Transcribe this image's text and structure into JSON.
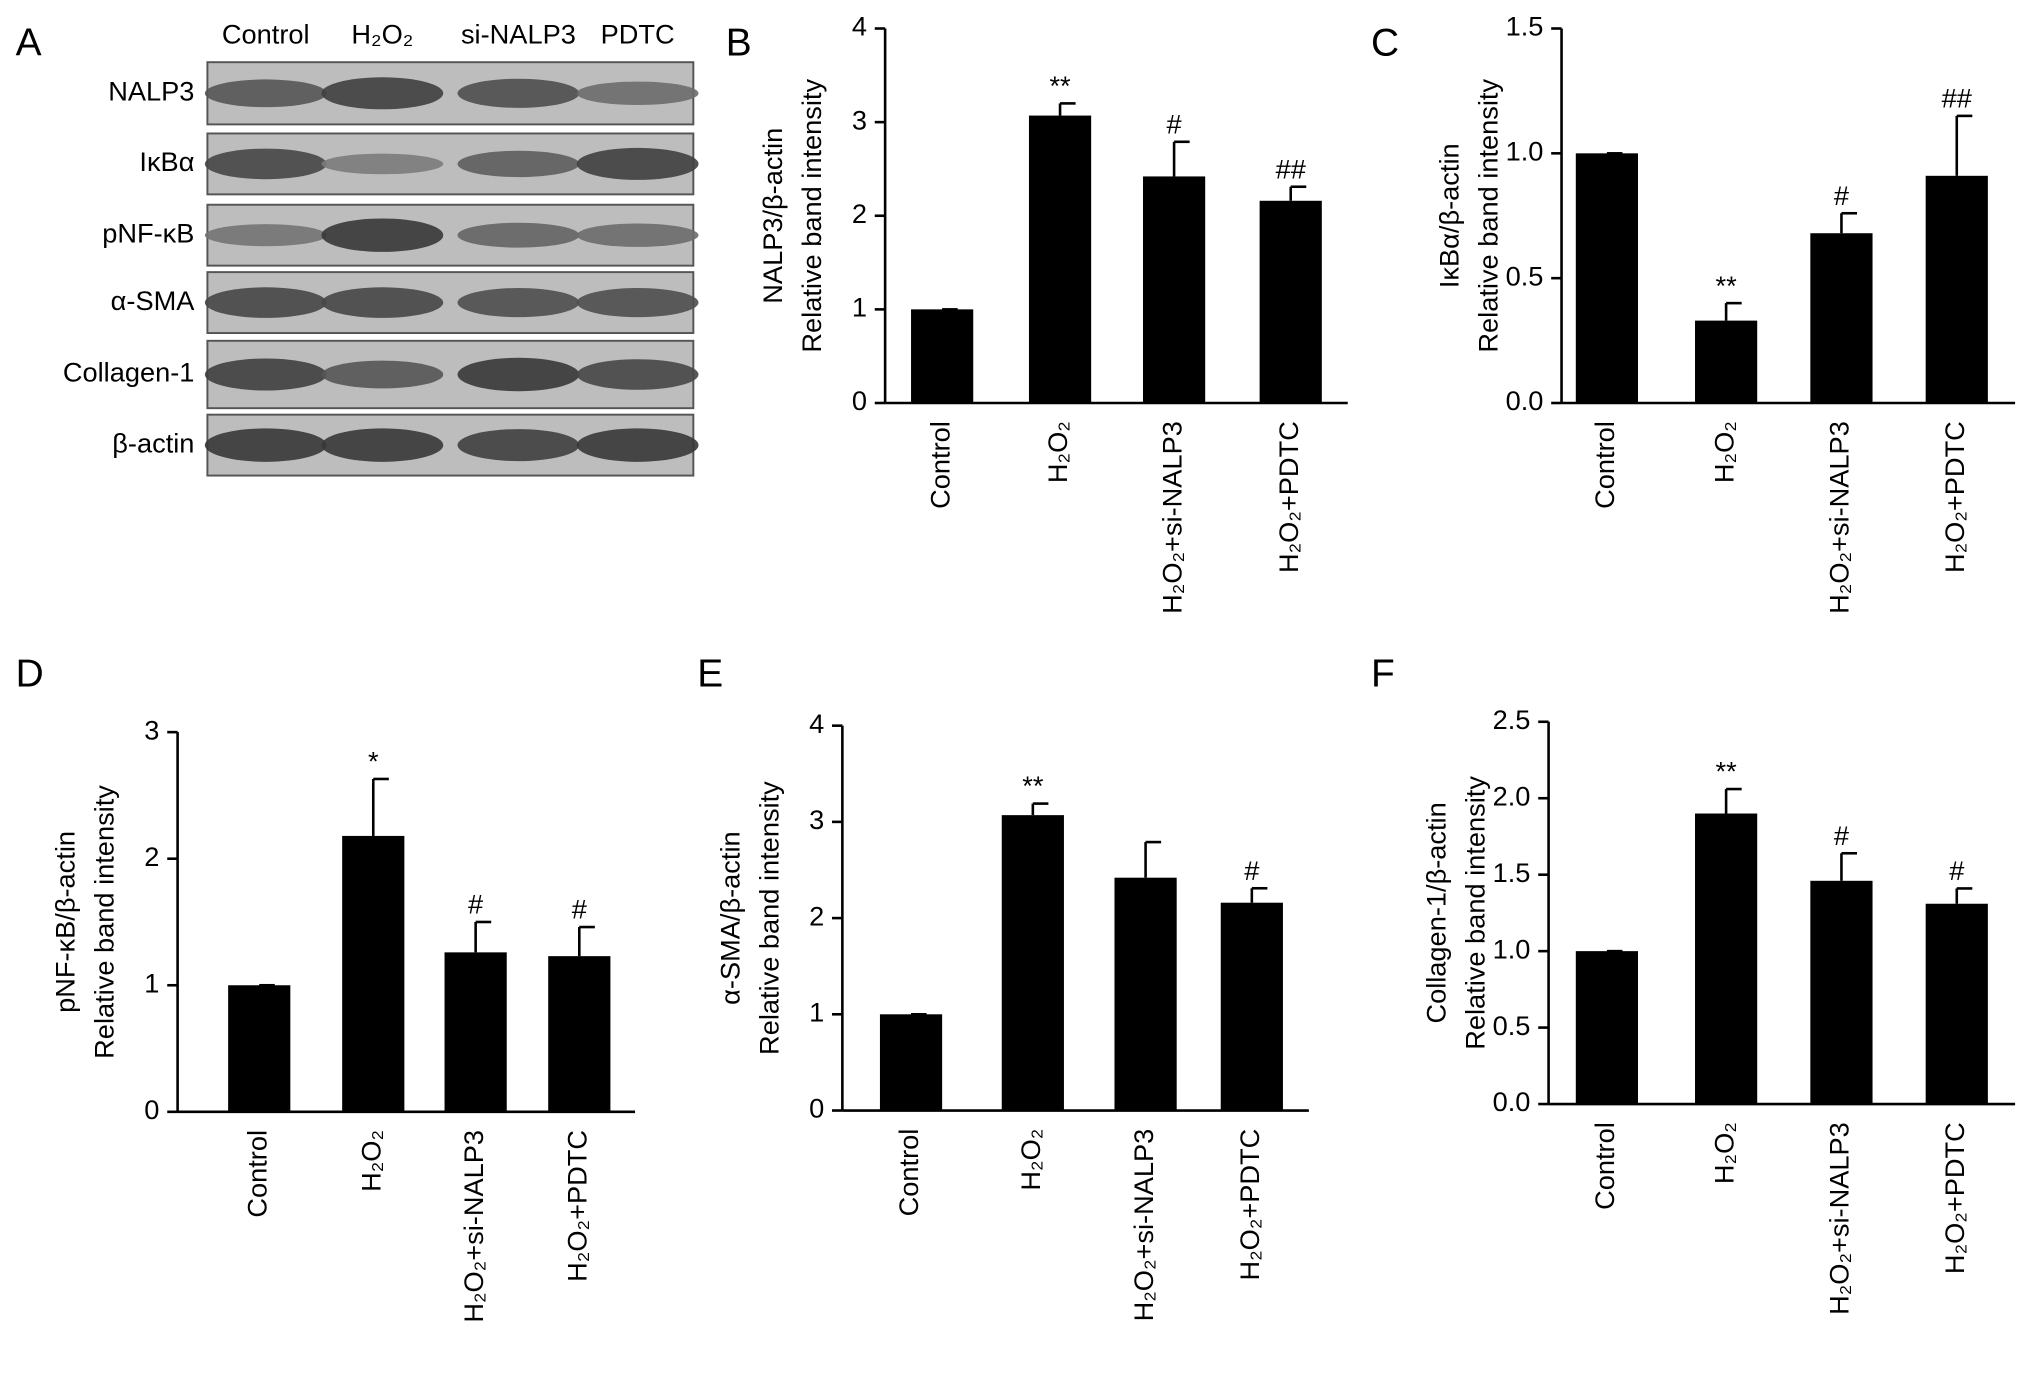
{
  "chart_data": [
    {
      "type": "blot",
      "panel": "A",
      "lanes": [
        "Control",
        "H₂O₂",
        "si-NALP3",
        "PDTC"
      ],
      "rows": [
        "NALP3",
        "IκBα",
        "pNF-κB",
        "α-SMA",
        "Collagen-1",
        "β-actin"
      ]
    },
    {
      "type": "bar",
      "panel": "B",
      "ylabel": [
        "NALP3/β-actin",
        "Relative band intensity"
      ],
      "categories": [
        "Control",
        "H₂O₂",
        "H₂O₂+si-NALP3",
        "H₂O₂+PDTC"
      ],
      "values": [
        1.0,
        3.07,
        2.42,
        2.16
      ],
      "errors": [
        0,
        0.13,
        0.37,
        0.15
      ],
      "annotations": [
        null,
        "**",
        "#",
        "##"
      ],
      "color": "#000000",
      "ylim": [
        0,
        4
      ],
      "yticks": [
        0,
        1,
        2,
        3,
        4
      ]
    },
    {
      "type": "bar",
      "panel": "C",
      "ylabel": [
        "IκBα/β-actin",
        "Relative band intensity"
      ],
      "categories": [
        "Control",
        "H₂O₂",
        "H₂O₂+si-NALP3",
        "H₂O₂+PDTC"
      ],
      "values": [
        1.0,
        0.33,
        0.68,
        0.91
      ],
      "errors": [
        0,
        0.07,
        0.08,
        0.24
      ],
      "annotations": [
        null,
        "**",
        "#",
        "##"
      ],
      "color": "#000000",
      "ylim": [
        0,
        1.5
      ],
      "yticks": [
        {
          "value": 0,
          "label": "0.0"
        },
        0.5,
        {
          "value": 1,
          "label": "1.0"
        },
        1.5
      ]
    },
    {
      "type": "bar",
      "panel": "D",
      "ylabel": [
        "pNF-κB/β-actin",
        "Relative band intensity"
      ],
      "categories": [
        "Control",
        "H₂O₂",
        "H₂O₂+si-NALP3",
        "H₂O₂+PDTC"
      ],
      "values": [
        1.0,
        2.18,
        1.26,
        1.23
      ],
      "errors": [
        0,
        0.45,
        0.24,
        0.23
      ],
      "annotations": [
        null,
        "*",
        "#",
        "#"
      ],
      "color": "#000000",
      "ylim": [
        0,
        3
      ],
      "yticks": [
        0,
        1,
        2,
        3
      ]
    },
    {
      "type": "bar",
      "panel": "E",
      "ylabel": [
        "α-SMA/β-actin",
        "Relative band intensity"
      ],
      "categories": [
        "Control",
        "H₂O₂",
        "H₂O₂+si-NALP3",
        "H₂O₂+PDTC"
      ],
      "values": [
        1.0,
        3.07,
        2.42,
        2.16
      ],
      "errors": [
        0,
        0.12,
        0.37,
        0.15
      ],
      "annotations": [
        null,
        "**",
        null,
        "#"
      ],
      "color": "#000000",
      "ylim": [
        0,
        4
      ],
      "yticks": [
        0,
        1,
        2,
        3,
        4
      ]
    },
    {
      "type": "bar",
      "panel": "F",
      "ylabel": [
        "Collagen-1/β-actin",
        "Relative band intensity"
      ],
      "categories": [
        "Control",
        "H₂O₂",
        "H₂O₂+si-NALP3",
        "H₂O₂+PDTC"
      ],
      "values": [
        1.0,
        1.9,
        1.46,
        1.31
      ],
      "errors": [
        0,
        0.16,
        0.18,
        0.1
      ],
      "annotations": [
        null,
        "**",
        "#",
        "#"
      ],
      "color": "#000000",
      "ylim": [
        0,
        2.5
      ],
      "yticks": [
        {
          "value": 0,
          "label": "0.0"
        },
        0.5,
        {
          "value": 1,
          "label": "1.0"
        },
        1.5,
        {
          "value": 2,
          "label": "2.0"
        },
        2.5
      ]
    }
  ]
}
